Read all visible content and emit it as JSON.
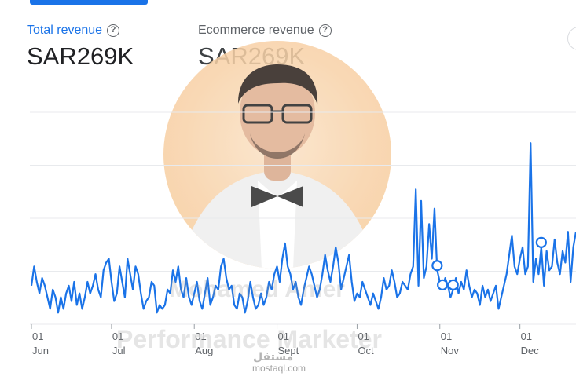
{
  "metrics": {
    "total_revenue": {
      "label": "Total revenue",
      "value": "SAR269K"
    },
    "ecommerce_revenue": {
      "label": "Ecommerce revenue",
      "value": "SAR269K"
    }
  },
  "icons": {
    "help": "help-circle-icon"
  },
  "colors": {
    "accent": "#1a73e8",
    "gridline": "#e8eaed",
    "label": "#5f6368"
  },
  "watermark": {
    "name": "Mohamed Amer",
    "role": "Performance Marketer",
    "site_ar": "مستقل",
    "site": "mostaql.com"
  },
  "chart_data": {
    "type": "line",
    "title": "",
    "xlabel": "",
    "ylabel": "",
    "grid": true,
    "x_ticks": [
      {
        "day": "01",
        "month": "Jun",
        "index": 0
      },
      {
        "day": "01",
        "month": "Jul",
        "index": 30
      },
      {
        "day": "01",
        "month": "Aug",
        "index": 61
      },
      {
        "day": "01",
        "month": "Sept",
        "index": 92
      },
      {
        "day": "01",
        "month": "Oct",
        "index": 122
      },
      {
        "day": "01",
        "month": "Nov",
        "index": 153
      },
      {
        "day": "01",
        "month": "Dec",
        "index": 183
      }
    ],
    "series": [
      {
        "color": "#1a73e8",
        "values": [
          20,
          30,
          22,
          16,
          24,
          20,
          14,
          8,
          18,
          14,
          6,
          14,
          8,
          16,
          20,
          12,
          22,
          10,
          16,
          8,
          14,
          22,
          16,
          20,
          26,
          18,
          14,
          28,
          32,
          34,
          22,
          12,
          16,
          30,
          22,
          14,
          34,
          26,
          18,
          30,
          26,
          16,
          8,
          12,
          14,
          22,
          20,
          6,
          10,
          8,
          10,
          18,
          16,
          28,
          22,
          30,
          18,
          14,
          24,
          14,
          10,
          16,
          22,
          12,
          8,
          16,
          24,
          10,
          14,
          20,
          18,
          30,
          34,
          24,
          18,
          20,
          10,
          8,
          16,
          14,
          6,
          12,
          22,
          14,
          8,
          10,
          16,
          10,
          14,
          22,
          18,
          26,
          30,
          22,
          34,
          42,
          30,
          26,
          18,
          22,
          14,
          10,
          18,
          24,
          30,
          26,
          20,
          14,
          18,
          26,
          36,
          28,
          22,
          30,
          40,
          32,
          18,
          24,
          30,
          36,
          22,
          12,
          16,
          14,
          22,
          18,
          14,
          10,
          16,
          12,
          8,
          14,
          24,
          18,
          20,
          28,
          22,
          14,
          16,
          22,
          20,
          18,
          26,
          30,
          70,
          20,
          64,
          24,
          30,
          52,
          34,
          60,
          28,
          22,
          18,
          24,
          20,
          14,
          18,
          24,
          16,
          22,
          18,
          28,
          20,
          14,
          18,
          16,
          10,
          20,
          14,
          18,
          12,
          16,
          20,
          8,
          14,
          20,
          26,
          36,
          46,
          30,
          26,
          34,
          40,
          26,
          30,
          94,
          22,
          34,
          26,
          40,
          20,
          38,
          28,
          30,
          44,
          32,
          26,
          38,
          32,
          48,
          22,
          40,
          48
        ],
        "highlighted_indices": [
          152,
          154,
          158,
          191
        ]
      }
    ],
    "ylim": [
      0,
      110
    ]
  }
}
